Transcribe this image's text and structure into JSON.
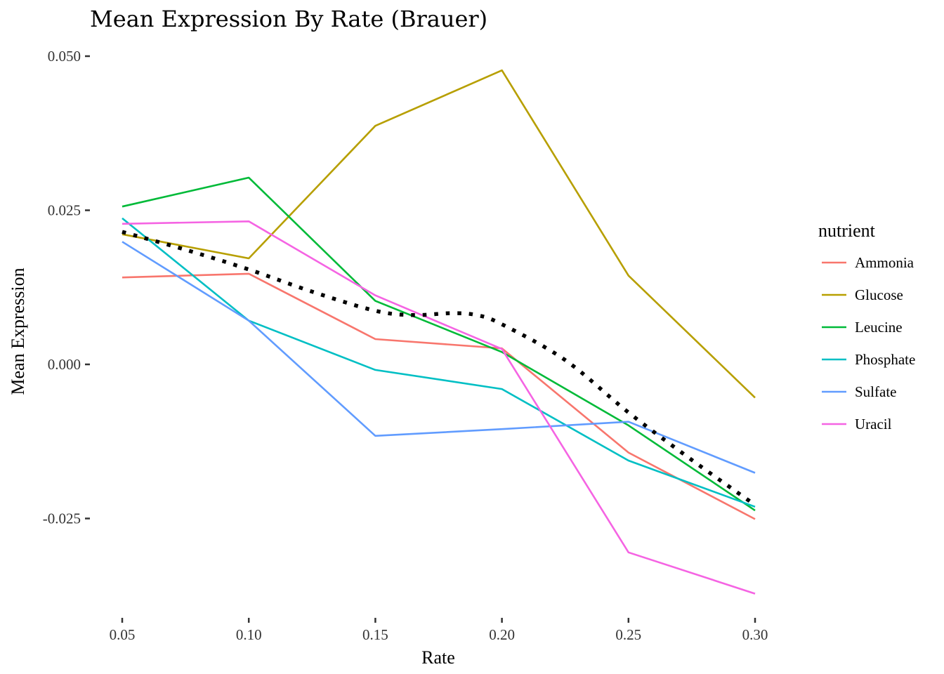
{
  "chart_data": {
    "type": "line",
    "title": "Mean Expression By Rate (Brauer)",
    "xlabel": "Rate",
    "ylabel": "Mean Expression",
    "x": [
      0.05,
      0.1,
      0.15,
      0.2,
      0.25,
      0.3
    ],
    "x_tick_labels": [
      "0.05",
      "0.10",
      "0.15",
      "0.20",
      "0.25",
      "0.30"
    ],
    "y_ticks": [
      -0.025,
      0.0,
      0.025,
      0.05
    ],
    "y_tick_labels": [
      "-0.025",
      "0.000",
      "0.025",
      "0.050"
    ],
    "xlim": [
      0.05,
      0.3
    ],
    "ylim": [
      -0.0375,
      0.052
    ],
    "grid": false,
    "legend": {
      "title": "nutrient",
      "position": "right"
    },
    "series": [
      {
        "name": "Ammonia",
        "color": "#F8766D",
        "values": [
          0.0141,
          0.0147,
          0.0041,
          0.0026,
          -0.0143,
          -0.0251
        ]
      },
      {
        "name": "Glucose",
        "color": "#B79F00",
        "values": [
          0.0211,
          0.0172,
          0.0387,
          0.0477,
          0.0144,
          -0.0054
        ]
      },
      {
        "name": "Leucine",
        "color": "#00BA38",
        "values": [
          0.0256,
          0.0303,
          0.0103,
          0.002,
          -0.0099,
          -0.0237
        ]
      },
      {
        "name": "Phosphate",
        "color": "#00BFC4",
        "values": [
          0.0237,
          0.0071,
          -0.0009,
          -0.004,
          -0.0156,
          -0.0231
        ]
      },
      {
        "name": "Sulfate",
        "color": "#619CFF",
        "values": [
          0.0199,
          0.0071,
          -0.0116,
          -0.0105,
          -0.0093,
          -0.0176
        ]
      },
      {
        "name": "Uracil",
        "color": "#F564E3",
        "values": [
          0.0228,
          0.0232,
          0.0112,
          0.0025,
          -0.0305,
          -0.0372
        ]
      }
    ],
    "smooth": {
      "style": "dotted",
      "color": "#000000",
      "x": [
        0.05,
        0.075,
        0.1,
        0.125,
        0.15,
        0.165,
        0.18,
        0.19,
        0.2,
        0.225,
        0.25,
        0.275,
        0.3
      ],
      "values": [
        0.0215,
        0.0186,
        0.0154,
        0.0118,
        0.0087,
        0.008,
        0.0083,
        0.008,
        0.0065,
        0.0007,
        -0.0078,
        -0.0155,
        -0.0228
      ]
    }
  }
}
